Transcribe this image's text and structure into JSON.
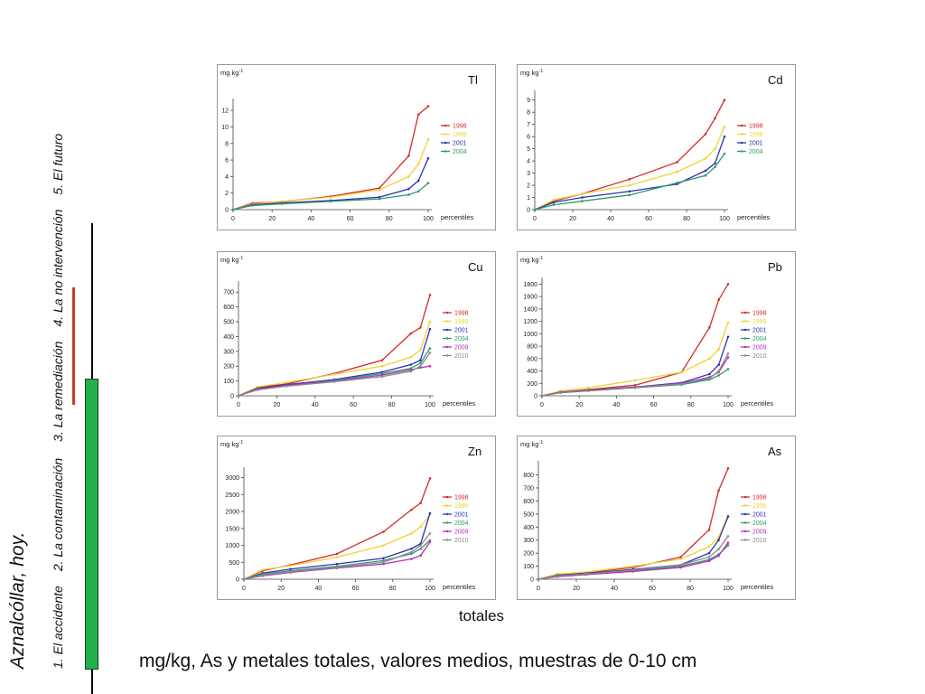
{
  "slide": {
    "title": "Aznalcóllar, hoy.",
    "nav": [
      "1. El accidente",
      "2. La contaminación",
      "3. La remediación",
      "4. La no intervención",
      "5. El futuro"
    ],
    "totales_label": "totales",
    "caption": "mg/kg,  As y metales totales, valores medios, muestras de 0-10 cm"
  },
  "colors": {
    "1998": "#d42a2a",
    "1999": "#f2d233",
    "2001": "#2b32b3",
    "2004": "#2f9a6b",
    "2009": "#b82fb8",
    "2010": "#8a8a8a",
    "nav_red": "#c8401e",
    "nav_green": "#20b14a"
  },
  "chart_data": [
    {
      "type": "line",
      "title": "Tl",
      "ylabel": "mg kg",
      "ylabel_sup": "-1",
      "xlabel": "percentiles",
      "ylim": [
        0,
        13
      ],
      "yticks": [
        0,
        2,
        4,
        6,
        8,
        10,
        12
      ],
      "xticks": [
        0,
        20,
        40,
        60,
        80,
        100
      ],
      "series": [
        {
          "name": "1998",
          "x": [
            0,
            10,
            25,
            50,
            75,
            90,
            95,
            100
          ],
          "values": [
            0,
            0.8,
            0.95,
            1.6,
            2.6,
            6.5,
            11.5,
            12.5
          ]
        },
        {
          "name": "1999",
          "x": [
            0,
            10,
            25,
            50,
            75,
            90,
            95,
            100
          ],
          "values": [
            0,
            0.7,
            1.0,
            1.5,
            2.4,
            4.0,
            5.5,
            8.5
          ]
        },
        {
          "name": "2001",
          "x": [
            0,
            10,
            25,
            50,
            75,
            90,
            95,
            100
          ],
          "values": [
            0,
            0.6,
            0.8,
            1.1,
            1.5,
            2.5,
            3.5,
            6.2
          ]
        },
        {
          "name": "2004",
          "x": [
            0,
            10,
            25,
            50,
            75,
            90,
            95,
            100
          ],
          "values": [
            0,
            0.5,
            0.7,
            1.0,
            1.3,
            1.8,
            2.2,
            3.2
          ]
        }
      ]
    },
    {
      "type": "line",
      "title": "Cd",
      "ylabel": "mg kg",
      "ylabel_sup": "-1",
      "xlabel": "percentiles",
      "ylim": [
        0,
        9.5
      ],
      "yticks": [
        0,
        1,
        2,
        3,
        4,
        5,
        6,
        7,
        8,
        9
      ],
      "xticks": [
        0,
        20,
        40,
        60,
        80,
        100
      ],
      "series": [
        {
          "name": "1998",
          "x": [
            0,
            10,
            25,
            50,
            75,
            90,
            95,
            100
          ],
          "values": [
            0,
            0.7,
            1.3,
            2.5,
            3.9,
            6.2,
            7.5,
            9.0
          ]
        },
        {
          "name": "1999",
          "x": [
            0,
            10,
            25,
            50,
            75,
            90,
            95,
            100
          ],
          "values": [
            0,
            0.8,
            1.3,
            2.0,
            3.1,
            4.2,
            5.0,
            6.8
          ]
        },
        {
          "name": "2001",
          "x": [
            0,
            10,
            25,
            50,
            75,
            90,
            95,
            100
          ],
          "values": [
            0,
            0.6,
            1.0,
            1.5,
            2.1,
            3.2,
            3.8,
            6.0
          ]
        },
        {
          "name": "2004",
          "x": [
            0,
            10,
            25,
            50,
            75,
            90,
            95,
            100
          ],
          "values": [
            0,
            0.4,
            0.7,
            1.2,
            2.2,
            2.8,
            3.5,
            4.6
          ]
        }
      ]
    },
    {
      "type": "line",
      "title": "Cu",
      "ylabel": "mg kg",
      "ylabel_sup": "-1",
      "xlabel": "percentiles",
      "ylim": [
        0,
        750
      ],
      "yticks": [
        0,
        100,
        200,
        300,
        400,
        500,
        600,
        700
      ],
      "xticks": [
        0,
        20,
        40,
        60,
        80,
        100
      ],
      "series": [
        {
          "name": "1998",
          "x": [
            0,
            10,
            25,
            50,
            75,
            90,
            95,
            100
          ],
          "values": [
            0,
            55,
            80,
            150,
            240,
            420,
            460,
            680
          ]
        },
        {
          "name": "1999",
          "x": [
            0,
            10,
            25,
            50,
            75,
            90,
            95,
            100
          ],
          "values": [
            0,
            60,
            90,
            145,
            200,
            260,
            310,
            500
          ]
        },
        {
          "name": "2001",
          "x": [
            0,
            10,
            25,
            50,
            75,
            90,
            95,
            100
          ],
          "values": [
            0,
            50,
            75,
            110,
            160,
            210,
            240,
            450
          ]
        },
        {
          "name": "2004",
          "x": [
            0,
            10,
            25,
            50,
            75,
            90,
            95,
            100
          ],
          "values": [
            0,
            45,
            70,
            105,
            150,
            185,
            220,
            320
          ]
        },
        {
          "name": "2009",
          "x": [
            0,
            10,
            25,
            50,
            75,
            90,
            95,
            100
          ],
          "values": [
            0,
            45,
            70,
            100,
            140,
            175,
            190,
            200
          ]
        },
        {
          "name": "2010",
          "x": [
            0,
            10,
            25,
            50,
            75,
            90,
            95,
            100
          ],
          "values": [
            0,
            40,
            65,
            95,
            130,
            165,
            200,
            290
          ]
        }
      ]
    },
    {
      "type": "line",
      "title": "Pb",
      "ylabel": "mg kg",
      "ylabel_sup": "-1",
      "xlabel": "percentiles",
      "ylim": [
        0,
        1850
      ],
      "yticks": [
        0,
        200,
        400,
        600,
        800,
        1000,
        1200,
        1400,
        1600,
        1800
      ],
      "xticks": [
        0,
        20,
        40,
        60,
        80,
        100
      ],
      "series": [
        {
          "name": "1998",
          "x": [
            0,
            10,
            25,
            50,
            75,
            90,
            95,
            100
          ],
          "values": [
            0,
            60,
            100,
            170,
            380,
            1100,
            1550,
            1800
          ]
        },
        {
          "name": "1999",
          "x": [
            0,
            10,
            25,
            50,
            75,
            90,
            95,
            100
          ],
          "values": [
            0,
            80,
            130,
            250,
            380,
            600,
            750,
            1180
          ]
        },
        {
          "name": "2001",
          "x": [
            0,
            10,
            25,
            50,
            75,
            90,
            95,
            100
          ],
          "values": [
            0,
            60,
            90,
            140,
            210,
            350,
            500,
            950
          ]
        },
        {
          "name": "2004",
          "x": [
            0,
            10,
            25,
            50,
            75,
            90,
            95,
            100
          ],
          "values": [
            0,
            50,
            80,
            130,
            180,
            260,
            330,
            430
          ]
        },
        {
          "name": "2009",
          "x": [
            0,
            10,
            25,
            50,
            75,
            90,
            95,
            100
          ],
          "values": [
            0,
            55,
            85,
            135,
            200,
            300,
            380,
            620
          ]
        },
        {
          "name": "2010",
          "x": [
            0,
            10,
            25,
            50,
            75,
            90,
            95,
            100
          ],
          "values": [
            0,
            50,
            80,
            130,
            190,
            280,
            400,
            680
          ]
        }
      ]
    },
    {
      "type": "line",
      "title": "Zn",
      "ylabel": "mg kg",
      "ylabel_sup": "-1",
      "xlabel": "percentiles",
      "ylim": [
        0,
        3200
      ],
      "yticks": [
        0,
        500,
        1000,
        1500,
        2000,
        2500,
        3000
      ],
      "xticks": [
        0,
        20,
        40,
        60,
        80,
        100
      ],
      "series": [
        {
          "name": "1998",
          "x": [
            0,
            10,
            25,
            50,
            75,
            90,
            95,
            100
          ],
          "values": [
            0,
            250,
            420,
            750,
            1400,
            2050,
            2250,
            2980
          ]
        },
        {
          "name": "1999",
          "x": [
            0,
            10,
            25,
            50,
            75,
            90,
            95,
            100
          ],
          "values": [
            0,
            280,
            400,
            650,
            1000,
            1350,
            1550,
            1900
          ]
        },
        {
          "name": "2001",
          "x": [
            0,
            10,
            25,
            50,
            75,
            90,
            95,
            100
          ],
          "values": [
            0,
            180,
            300,
            450,
            620,
            900,
            1050,
            1950
          ]
        },
        {
          "name": "2004",
          "x": [
            0,
            10,
            25,
            50,
            75,
            90,
            95,
            100
          ],
          "values": [
            0,
            150,
            250,
            380,
            550,
            750,
            900,
            1150
          ]
        },
        {
          "name": "2009",
          "x": [
            0,
            10,
            25,
            50,
            75,
            90,
            95,
            100
          ],
          "values": [
            0,
            100,
            200,
            330,
            450,
            600,
            700,
            1100
          ]
        },
        {
          "name": "2010",
          "x": [
            0,
            10,
            25,
            50,
            75,
            90,
            95,
            100
          ],
          "values": [
            0,
            120,
            220,
            350,
            500,
            800,
            1000,
            1350
          ]
        }
      ]
    },
    {
      "type": "line",
      "title": "As",
      "ylabel": "mg kg",
      "ylabel_sup": "-1",
      "xlabel": "percentiles",
      "ylim": [
        0,
        880
      ],
      "yticks": [
        0,
        100,
        200,
        300,
        400,
        500,
        600,
        700,
        800
      ],
      "xticks": [
        0,
        20,
        40,
        60,
        80,
        100
      ],
      "series": [
        {
          "name": "1998",
          "x": [
            0,
            10,
            25,
            50,
            75,
            90,
            95,
            100
          ],
          "values": [
            0,
            35,
            50,
            90,
            170,
            380,
            680,
            850
          ]
        },
        {
          "name": "1999",
          "x": [
            0,
            10,
            25,
            50,
            75,
            90,
            95,
            100
          ],
          "values": [
            0,
            40,
            55,
            100,
            155,
            250,
            320,
            490
          ]
        },
        {
          "name": "2001",
          "x": [
            0,
            10,
            25,
            50,
            75,
            90,
            95,
            100
          ],
          "values": [
            0,
            30,
            45,
            75,
            110,
            200,
            300,
            480
          ]
        },
        {
          "name": "2004",
          "x": [
            0,
            10,
            25,
            50,
            75,
            90,
            95,
            100
          ],
          "values": [
            0,
            25,
            40,
            65,
            100,
            150,
            190,
            260
          ]
        },
        {
          "name": "2009",
          "x": [
            0,
            10,
            25,
            50,
            75,
            90,
            95,
            100
          ],
          "values": [
            0,
            20,
            35,
            60,
            90,
            140,
            180,
            280
          ]
        },
        {
          "name": "2010",
          "x": [
            0,
            10,
            25,
            50,
            75,
            90,
            95,
            100
          ],
          "values": [
            0,
            25,
            40,
            70,
            110,
            170,
            230,
            330
          ]
        }
      ]
    }
  ]
}
